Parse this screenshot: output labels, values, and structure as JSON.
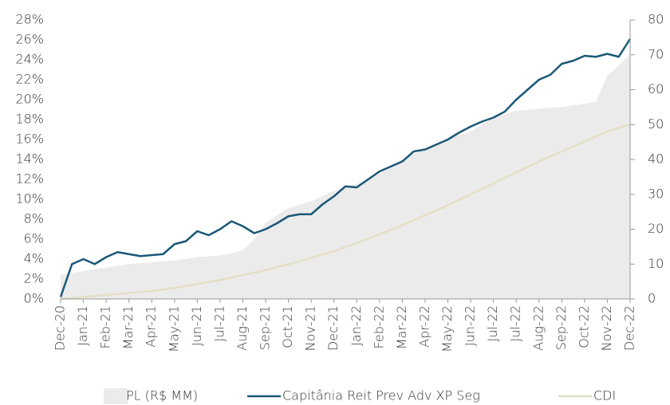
{
  "chart_data": {
    "type": "line",
    "categories": [
      "Dec-20",
      null,
      "Jan-21",
      null,
      "Feb-21",
      null,
      "Mar-21",
      null,
      "Apr-21",
      null,
      "May-21",
      null,
      "Jun-21",
      null,
      "Jul-21",
      null,
      "Aug-21",
      null,
      "Sep-21",
      null,
      "Oct-21",
      null,
      "Nov-21",
      null,
      "Dec-21",
      null,
      "Jan-22",
      null,
      "Feb-22",
      null,
      "Mar-22",
      null,
      "Apr-22",
      null,
      "May-22",
      null,
      "Jun-22",
      null,
      "Jul-22",
      null,
      "Jul-22",
      null,
      "Aug-22",
      null,
      "Sep-22",
      null,
      "Oct-22",
      null,
      "Nov-22",
      null,
      "Dec-22"
    ],
    "series": [
      {
        "name": "PL (R$ MM)",
        "type": "area",
        "axis": "y2",
        "color": "#ebebeb",
        "values": [
          7,
          7.5,
          8,
          8.5,
          9,
          9.5,
          10,
          10.2,
          10.5,
          10.8,
          11,
          11.5,
          12,
          12.2,
          12.5,
          13,
          14,
          17,
          22,
          24,
          26,
          27,
          28,
          29.5,
          31,
          32,
          33,
          34.5,
          36,
          38,
          40,
          41.5,
          43,
          44.5,
          46,
          47,
          48,
          50,
          52,
          53,
          54,
          54.2,
          54.5,
          54.8,
          55,
          55.5,
          56,
          56.5,
          64,
          67,
          70
        ]
      },
      {
        "name": "Capitânia Reit Prev Adv XP Seg",
        "type": "line",
        "axis": "y",
        "color": "#1b5877",
        "values": [
          0.2,
          3.5,
          4.0,
          3.5,
          4.2,
          4.7,
          4.5,
          4.3,
          4.4,
          4.5,
          5.5,
          5.8,
          6.8,
          6.4,
          7.0,
          7.8,
          7.3,
          6.6,
          7.0,
          7.6,
          8.3,
          8.5,
          8.5,
          9.5,
          10.3,
          11.3,
          11.2,
          12.0,
          12.8,
          13.3,
          13.8,
          14.8,
          15.0,
          15.5,
          16.0,
          16.7,
          17.3,
          17.8,
          18.2,
          18.8,
          20.0,
          21.0,
          22.0,
          22.5,
          23.6,
          23.9,
          24.4,
          24.3,
          24.6,
          24.3,
          26.1
        ]
      },
      {
        "name": "CDI",
        "type": "line",
        "axis": "y",
        "color": "#e3dfc6",
        "values": [
          0,
          0.1,
          0.2,
          0.3,
          0.4,
          0.5,
          0.6,
          0.7,
          0.8,
          0.95,
          1.1,
          1.3,
          1.5,
          1.7,
          1.9,
          2.15,
          2.4,
          2.65,
          2.9,
          3.2,
          3.5,
          3.8,
          4.1,
          4.45,
          4.8,
          5.2,
          5.6,
          6.05,
          6.5,
          6.95,
          7.4,
          7.9,
          8.4,
          8.9,
          9.4,
          9.95,
          10.5,
          11.05,
          11.6,
          12.15,
          12.7,
          13.25,
          13.8,
          14.3,
          14.8,
          15.3,
          15.8,
          16.3,
          16.8,
          17.2,
          17.5
        ]
      }
    ],
    "ylim": [
      0,
      28
    ],
    "yticks": [
      {
        "value": 0,
        "label": "0%"
      },
      {
        "value": 2,
        "label": "2%"
      },
      {
        "value": 4,
        "label": "4%"
      },
      {
        "value": 6,
        "label": "6%"
      },
      {
        "value": 8,
        "label": "8%"
      },
      {
        "value": 10,
        "label": "10%"
      },
      {
        "value": 12,
        "label": "12%"
      },
      {
        "value": 14,
        "label": "14%"
      },
      {
        "value": 16,
        "label": "16%"
      },
      {
        "value": 18,
        "label": "18%"
      },
      {
        "value": 20,
        "label": "20%"
      },
      {
        "value": 22,
        "label": "22%"
      },
      {
        "value": 24,
        "label": "24%"
      },
      {
        "value": 26,
        "label": "26%"
      },
      {
        "value": 28,
        "label": "28%"
      }
    ],
    "y2lim": [
      0,
      80
    ],
    "y2ticks": [
      0,
      10,
      20,
      30,
      40,
      50,
      60,
      70,
      80
    ],
    "legend": "bottom"
  }
}
